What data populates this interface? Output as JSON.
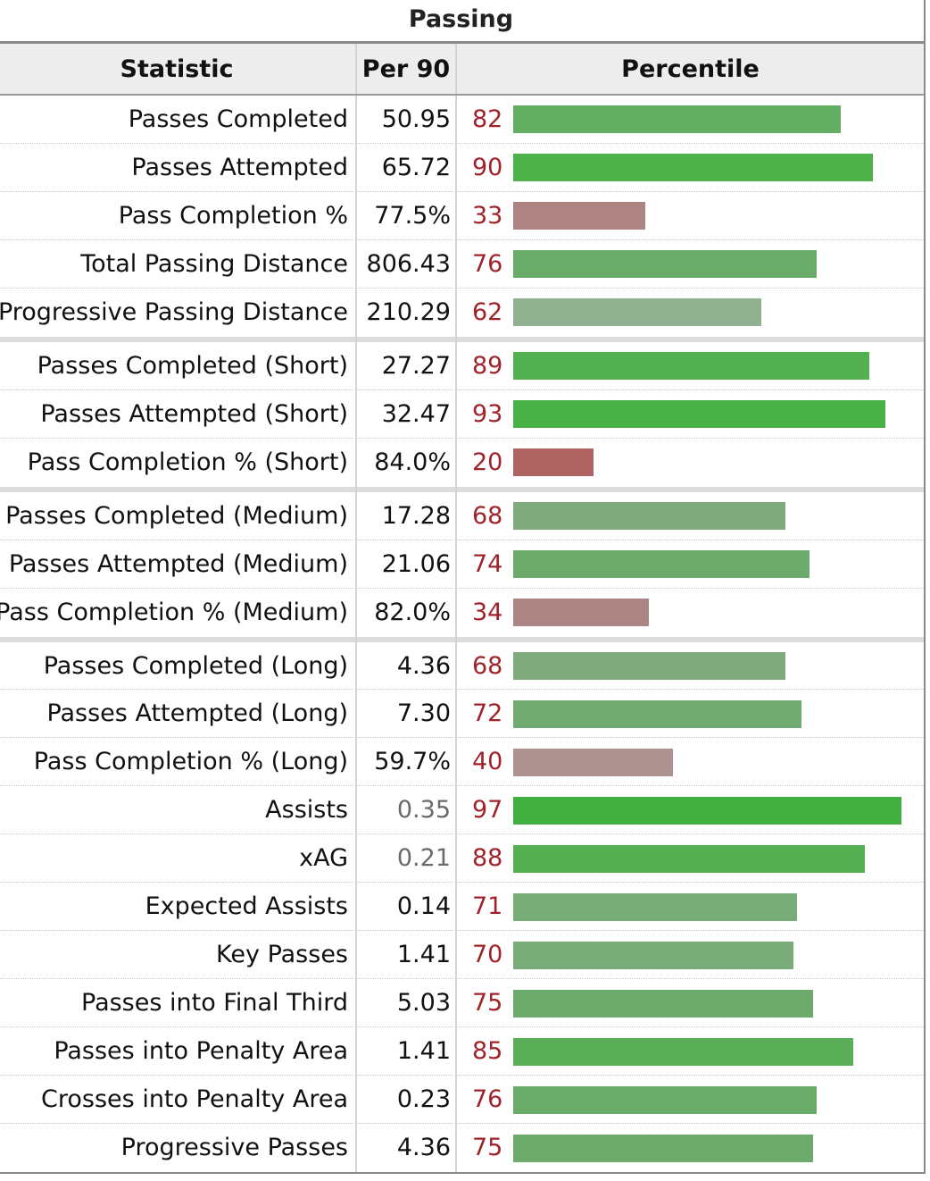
{
  "table": {
    "caption": "Passing",
    "headers": {
      "statistic": "Statistic",
      "per90": "Per 90",
      "percentile": "Percentile"
    },
    "groups": [
      [
        {
          "stat": "Passes Completed",
          "per90": "50.95",
          "pct": 82,
          "color": "#63ae62"
        },
        {
          "stat": "Passes Attempted",
          "per90": "65.72",
          "pct": 90,
          "color": "#4db14a"
        },
        {
          "stat": "Pass Completion %",
          "per90": "77.5%",
          "pct": 33,
          "color": "#ad8383"
        },
        {
          "stat": "Total Passing Distance",
          "per90": "806.43",
          "pct": 76,
          "color": "#69ab69"
        },
        {
          "stat": "Progressive Passing Distance",
          "per90": "210.29",
          "pct": 62,
          "color": "#8fb18f"
        }
      ],
      [
        {
          "stat": "Passes Completed (Short)",
          "per90": "27.27",
          "pct": 89,
          "color": "#53b051"
        },
        {
          "stat": "Passes Attempted (Short)",
          "per90": "32.47",
          "pct": 93,
          "color": "#49b246"
        },
        {
          "stat": "Pass Completion % (Short)",
          "per90": "84.0%",
          "pct": 20,
          "color": "#af6363"
        }
      ],
      [
        {
          "stat": "Passes Completed (Medium)",
          "per90": "17.28",
          "pct": 68,
          "color": "#7fab7f"
        },
        {
          "stat": "Passes Attempted (Medium)",
          "per90": "21.06",
          "pct": 74,
          "color": "#6cab6b"
        },
        {
          "stat": "Pass Completion % (Medium)",
          "per90": "82.0%",
          "pct": 34,
          "color": "#ad8585"
        }
      ],
      [
        {
          "stat": "Passes Completed (Long)",
          "per90": "4.36",
          "pct": 68,
          "color": "#7fab7f"
        },
        {
          "stat": "Passes Attempted (Long)",
          "per90": "7.30",
          "pct": 72,
          "color": "#72ab71"
        },
        {
          "stat": "Pass Completion % (Long)",
          "per90": "59.7%",
          "pct": 40,
          "color": "#ae9393"
        },
        {
          "stat": "Assists",
          "per90": "0.35",
          "pct": 97,
          "color": "#40af40",
          "muted": true
        },
        {
          "stat": "xAG",
          "per90": "0.21",
          "pct": 88,
          "color": "#55af53",
          "muted": true
        },
        {
          "stat": "Expected Assists",
          "per90": "0.14",
          "pct": 71,
          "color": "#78ac77"
        },
        {
          "stat": "Key Passes",
          "per90": "1.41",
          "pct": 70,
          "color": "#78ab77"
        },
        {
          "stat": "Passes into Final Third",
          "per90": "5.03",
          "pct": 75,
          "color": "#6cab6b"
        },
        {
          "stat": "Passes into Penalty Area",
          "per90": "1.41",
          "pct": 85,
          "color": "#5aae58"
        },
        {
          "stat": "Crosses into Penalty Area",
          "per90": "0.23",
          "pct": 76,
          "color": "#69ab69"
        },
        {
          "stat": "Progressive Passes",
          "per90": "4.36",
          "pct": 75,
          "color": "#6cab6b"
        }
      ]
    ]
  }
}
